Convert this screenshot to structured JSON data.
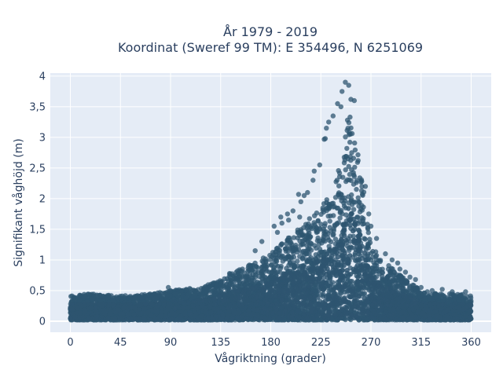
{
  "chart_data": {
    "type": "scatter",
    "title": "År 1979 - 2019",
    "subtitle": "Koordinat (Sweref 99 TM): E 354496, N 6251069",
    "xlabel": "Vågriktning (grader)",
    "ylabel": "Signifikant våghöjd (m)",
    "xlim": [
      -18,
      378
    ],
    "ylim": [
      -0.18,
      4.05
    ],
    "xticks": [
      0,
      45,
      90,
      135,
      180,
      225,
      270,
      315,
      360
    ],
    "xtick_labels": [
      "0",
      "45",
      "90",
      "135",
      "180",
      "225",
      "270",
      "315",
      "360"
    ],
    "yticks": [
      0,
      0.5,
      1,
      1.5,
      2,
      2.5,
      3,
      3.5,
      4
    ],
    "ytick_labels": [
      "0",
      "0,5",
      "1",
      "1,5",
      "2",
      "2,5",
      "3",
      "3,5",
      "4"
    ],
    "grid": true,
    "marker_color": "#2e5570",
    "plot_bg": "#e5ecf6",
    "envelope": {
      "direction": [
        0,
        20,
        45,
        60,
        90,
        120,
        135,
        150,
        165,
        180,
        195,
        210,
        225,
        235,
        240,
        245,
        248,
        250,
        252,
        255,
        258,
        262,
        266,
        270,
        280,
        290,
        300,
        315,
        330,
        345,
        360
      ],
      "max_height": [
        0.42,
        0.45,
        0.42,
        0.42,
        0.5,
        0.56,
        0.7,
        0.85,
        0.95,
        1.1,
        1.35,
        1.6,
        1.85,
        2.15,
        2.4,
        2.75,
        3.2,
        3.55,
        3.4,
        3.2,
        2.8,
        2.3,
        1.8,
        1.25,
        1.0,
        0.85,
        0.7,
        0.5,
        0.45,
        0.45,
        0.42
      ]
    },
    "outliers": [
      {
        "x": 247,
        "y": 3.9
      },
      {
        "x": 250,
        "y": 3.85
      },
      {
        "x": 244,
        "y": 3.75
      },
      {
        "x": 252,
        "y": 3.62
      },
      {
        "x": 255,
        "y": 3.6
      },
      {
        "x": 240,
        "y": 3.55
      },
      {
        "x": 243,
        "y": 3.5
      },
      {
        "x": 236,
        "y": 3.35
      },
      {
        "x": 232,
        "y": 3.25
      },
      {
        "x": 230,
        "y": 3.15
      },
      {
        "x": 228,
        "y": 2.97
      },
      {
        "x": 229,
        "y": 2.98
      },
      {
        "x": 224,
        "y": 2.55
      },
      {
        "x": 219,
        "y": 2.45
      },
      {
        "x": 218,
        "y": 2.3
      },
      {
        "x": 213,
        "y": 2.1
      },
      {
        "x": 210,
        "y": 2.05
      },
      {
        "x": 205,
        "y": 2.07
      },
      {
        "x": 207,
        "y": 1.95
      },
      {
        "x": 195,
        "y": 1.75
      },
      {
        "x": 196,
        "y": 1.65
      },
      {
        "x": 200,
        "y": 1.8
      },
      {
        "x": 189,
        "y": 1.7
      },
      {
        "x": 183,
        "y": 1.55
      },
      {
        "x": 190,
        "y": 1.6
      },
      {
        "x": 206,
        "y": 1.7
      },
      {
        "x": 265,
        "y": 2.2
      },
      {
        "x": 268,
        "y": 1.75
      },
      {
        "x": 270,
        "y": 1.55
      },
      {
        "x": 275,
        "y": 1.35
      },
      {
        "x": 283,
        "y": 1.1
      },
      {
        "x": 289,
        "y": 1.0
      },
      {
        "x": 294,
        "y": 0.95
      },
      {
        "x": 296,
        "y": 0.85
      },
      {
        "x": 301,
        "y": 0.8
      },
      {
        "x": 305,
        "y": 0.72
      },
      {
        "x": 310,
        "y": 0.68
      },
      {
        "x": 315,
        "y": 0.55
      },
      {
        "x": 325,
        "y": 0.5
      },
      {
        "x": 334,
        "y": 0.52
      },
      {
        "x": 343,
        "y": 0.48
      },
      {
        "x": 355,
        "y": 0.48
      },
      {
        "x": 88,
        "y": 0.55
      },
      {
        "x": 172,
        "y": 1.3
      },
      {
        "x": 166,
        "y": 1.15
      },
      {
        "x": 160,
        "y": 0.9
      },
      {
        "x": 186,
        "y": 1.45
      }
    ]
  }
}
